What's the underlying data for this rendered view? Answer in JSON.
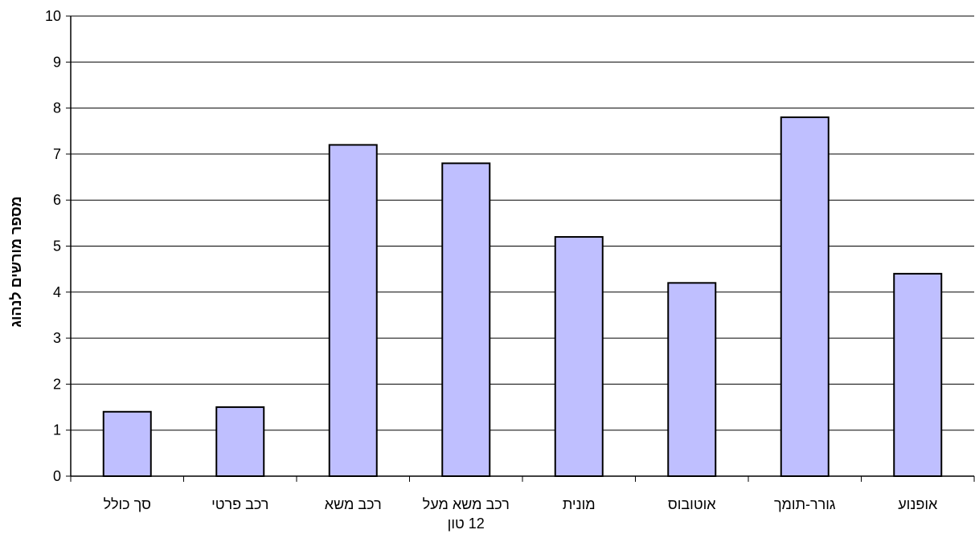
{
  "chart_data": {
    "type": "bar",
    "title": "",
    "xlabel": "",
    "ylabel": "מספר מורשים לנהוג",
    "ylim": [
      0,
      10
    ],
    "yticks": [
      "0",
      "1",
      "2",
      "3",
      "4",
      "5",
      "6",
      "7",
      "8",
      "9",
      "10"
    ],
    "grid": true,
    "categories": [
      [
        "סך כולל"
      ],
      [
        "רכב פרטי"
      ],
      [
        "רכב משא"
      ],
      [
        "רכב משא מעל",
        "12 טון"
      ],
      [
        "מונית"
      ],
      [
        "אוטובוס"
      ],
      [
        "גורר-תומך"
      ],
      [
        "אופנוע"
      ]
    ],
    "values": [
      1.4,
      1.5,
      7.2,
      6.8,
      5.2,
      4.2,
      7.8,
      4.4
    ],
    "colors": {
      "bar_fill": "#BFBFFF",
      "bar_stroke": "#000000",
      "grid": "#000000",
      "axis": "#000000"
    }
  }
}
